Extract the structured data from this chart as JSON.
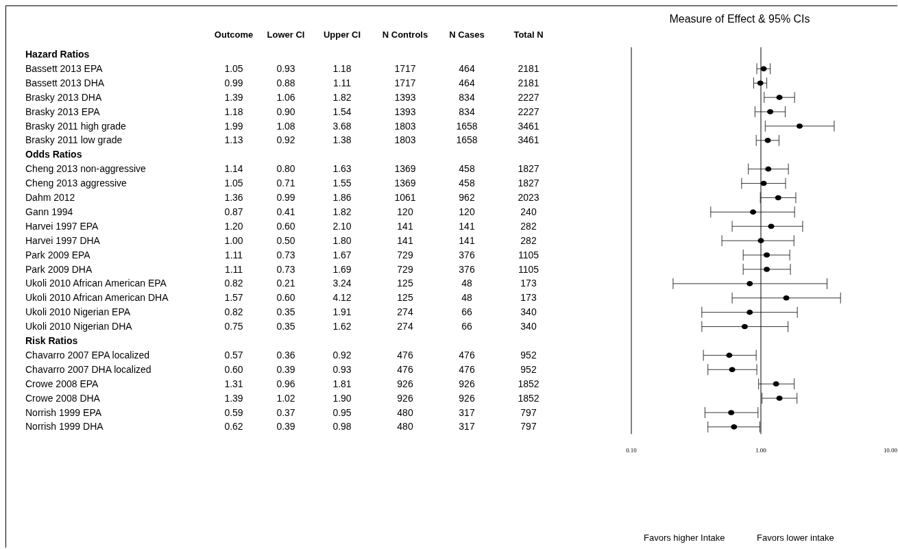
{
  "chart_data": [
    {
      "type": "heatmap",
      "data_labels": true,
      "categories": [
        "Outcome",
        "Lower CI",
        "Upper CI",
        "N Controls",
        "N Cases",
        "Total N"
      ],
      "y_categories": [
        "Hazard Ratios",
        "Bassett 2013 EPA",
        "Bassett 2013 DHA",
        "Brasky 2013 DHA",
        "Brasky 2013 EPA",
        "Brasky 2011 high grade",
        "Brasky 2011 low grade",
        "Odds Ratios",
        "Cheng 2013 non-aggressive",
        "Cheng 2013 aggressive",
        "Dahm 2012",
        "Gann 1994",
        "Harvei 1997 EPA",
        "Harvei 1997 DHA",
        "Park 2009 EPA",
        "Park 2009 DHA",
        "Ukoli 2010 African American EPA",
        "Ukoli 2010 African American DHA",
        "Ukoli 2010 Nigerian EPA",
        "Ukoli 2010 Nigerian DHA",
        "Risk Ratios",
        "Chavarro 2007 EPA localized",
        "Chavarro 2007 DHA localized",
        "Crowe 2008 EPA",
        "Crowe 2008 DHA",
        "Norrish 1999 EPA",
        "Norrish 1999 DHA"
      ],
      "cells": [
        [
          null,
          null,
          null,
          null,
          null,
          null
        ],
        [
          1.05,
          0.93,
          1.18,
          1717,
          464,
          2181
        ],
        [
          0.99,
          0.88,
          1.11,
          1717,
          464,
          2181
        ],
        [
          1.39,
          1.06,
          1.82,
          1393,
          834,
          2227
        ],
        [
          1.18,
          0.9,
          1.54,
          1393,
          834,
          2227
        ],
        [
          1.99,
          1.08,
          3.68,
          1803,
          1658,
          3461
        ],
        [
          1.13,
          0.92,
          1.38,
          1803,
          1658,
          3461
        ],
        [
          null,
          null,
          null,
          null,
          null,
          null
        ],
        [
          1.14,
          0.8,
          1.63,
          1369,
          458,
          1827
        ],
        [
          1.05,
          0.71,
          1.55,
          1369,
          458,
          1827
        ],
        [
          1.36,
          0.99,
          1.86,
          1061,
          962,
          2023
        ],
        [
          0.87,
          0.41,
          1.82,
          120,
          120,
          240
        ],
        [
          1.2,
          0.6,
          2.1,
          141,
          141,
          282
        ],
        [
          1.0,
          0.5,
          1.8,
          141,
          141,
          282
        ],
        [
          1.11,
          0.73,
          1.67,
          729,
          376,
          1105
        ],
        [
          1.11,
          0.73,
          1.69,
          729,
          376,
          1105
        ],
        [
          0.82,
          0.21,
          3.24,
          125,
          48,
          173
        ],
        [
          1.57,
          0.6,
          4.12,
          125,
          48,
          173
        ],
        [
          0.82,
          0.35,
          1.91,
          274,
          66,
          340
        ],
        [
          0.75,
          0.35,
          1.62,
          274,
          66,
          340
        ],
        [
          null,
          null,
          null,
          null,
          null,
          null
        ],
        [
          0.57,
          0.36,
          0.92,
          476,
          476,
          952
        ],
        [
          0.6,
          0.39,
          0.93,
          476,
          476,
          952
        ],
        [
          1.31,
          0.96,
          1.81,
          926,
          926,
          1852
        ],
        [
          1.39,
          1.02,
          1.9,
          926,
          926,
          1852
        ],
        [
          0.59,
          0.37,
          0.95,
          480,
          317,
          797
        ],
        [
          0.62,
          0.39,
          0.98,
          480,
          317,
          797
        ]
      ],
      "cell_labels": [
        [
          null,
          null,
          null,
          null,
          null,
          null
        ],
        [
          "1.05",
          "0.93",
          "1.18",
          "1717",
          "464",
          "2181"
        ],
        [
          "0.99",
          "0.88",
          "1.11",
          "1717",
          "464",
          "2181"
        ],
        [
          "1.39",
          "1.06",
          "1.82",
          "1393",
          "834",
          "2227"
        ],
        [
          "1.18",
          "0.90",
          "1.54",
          "1393",
          "834",
          "2227"
        ],
        [
          "1.99",
          "1.08",
          "3.68",
          "1803",
          "1658",
          "3461"
        ],
        [
          "1.13",
          "0.92",
          "1.38",
          "1803",
          "1658",
          "3461"
        ],
        [
          null,
          null,
          null,
          null,
          null,
          null
        ],
        [
          "1.14",
          "0.80",
          "1.63",
          "1369",
          "458",
          "1827"
        ],
        [
          "1.05",
          "0.71",
          "1.55",
          "1369",
          "458",
          "1827"
        ],
        [
          "1.36",
          "0.99",
          "1.86",
          "1061",
          "962",
          "2023"
        ],
        [
          "0.87",
          "0.41",
          "1.82",
          "120",
          "120",
          "240"
        ],
        [
          "1.20",
          "0.60",
          "2.10",
          "141",
          "141",
          "282"
        ],
        [
          "1.00",
          "0.50",
          "1.80",
          "141",
          "141",
          "282"
        ],
        [
          "1.11",
          "0.73",
          "1.67",
          "729",
          "376",
          "1105"
        ],
        [
          "1.11",
          "0.73",
          "1.69",
          "729",
          "376",
          "1105"
        ],
        [
          "0.82",
          "0.21",
          "3.24",
          "125",
          "48",
          "173"
        ],
        [
          "1.57",
          "0.60",
          "4.12",
          "125",
          "48",
          "173"
        ],
        [
          "0.82",
          "0.35",
          "1.91",
          "274",
          "66",
          "340"
        ],
        [
          "0.75",
          "0.35",
          "1.62",
          "274",
          "66",
          "340"
        ],
        [
          null,
          null,
          null,
          null,
          null,
          null
        ],
        [
          "0.57",
          "0.36",
          "0.92",
          "476",
          "476",
          "952"
        ],
        [
          "0.60",
          "0.39",
          "0.93",
          "476",
          "476",
          "952"
        ],
        [
          "1.31",
          "0.96",
          "1.81",
          "926",
          "926",
          "1852"
        ],
        [
          "1.39",
          "1.02",
          "1.90",
          "926",
          "926",
          "1852"
        ],
        [
          "0.59",
          "0.37",
          "0.95",
          "480",
          "317",
          "797"
        ],
        [
          "0.62",
          "0.39",
          "0.98",
          "480",
          "317",
          "797"
        ]
      ]
    },
    {
      "type": "scatter",
      "orientation": "horizontal",
      "title": "Measure of Effect & 95% CIs",
      "log": "x",
      "marker": "circle",
      "color": "#000000",
      "categories": [
        null,
        null,
        null,
        null,
        null,
        null,
        null,
        null,
        null,
        null,
        null,
        null,
        null,
        null,
        null,
        null,
        null,
        null,
        null,
        null,
        null,
        null,
        null,
        null,
        null,
        null,
        null
      ],
      "values": [
        null,
        1.05,
        0.99,
        1.39,
        1.18,
        1.99,
        1.13,
        null,
        1.14,
        1.05,
        1.36,
        0.87,
        1.2,
        1.0,
        1.11,
        1.11,
        0.82,
        1.57,
        0.82,
        0.75,
        null,
        0.57,
        0.6,
        1.31,
        1.39,
        0.59,
        0.62
      ],
      "errors": [
        null,
        [
          0.93,
          1.18
        ],
        [
          0.88,
          1.11
        ],
        [
          1.06,
          1.82
        ],
        [
          0.9,
          1.54
        ],
        [
          1.08,
          3.68
        ],
        [
          0.92,
          1.38
        ],
        null,
        [
          0.8,
          1.63
        ],
        [
          0.71,
          1.55
        ],
        [
          0.99,
          1.86
        ],
        [
          0.41,
          1.82
        ],
        [
          0.6,
          2.1
        ],
        [
          0.5,
          1.8
        ],
        [
          0.73,
          1.67
        ],
        [
          0.73,
          1.69
        ],
        [
          0.21,
          3.24
        ],
        [
          0.6,
          4.12
        ],
        [
          0.35,
          1.91
        ],
        [
          0.35,
          1.62
        ],
        null,
        [
          0.36,
          0.92
        ],
        [
          0.39,
          0.93
        ],
        [
          0.96,
          1.81
        ],
        [
          1.02,
          1.9
        ],
        [
          0.37,
          0.95
        ],
        [
          0.39,
          0.98
        ]
      ],
      "xlim": [
        0.1,
        10
      ],
      "xticks": [
        {
          "value": 0.1,
          "label": "0.10"
        },
        {
          "value": 1,
          "label": "1.00"
        },
        {
          "value": 10,
          "label": "10.00"
        }
      ],
      "ref_lines": [
        {
          "axis": "x",
          "value": 1
        }
      ],
      "grid": false,
      "tick_labels": "x",
      "annotations": [
        "Favors higher Intake",
        "Favors lower intake"
      ]
    }
  ]
}
